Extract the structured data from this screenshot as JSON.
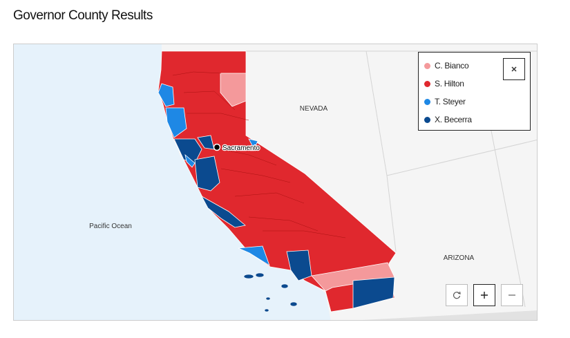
{
  "title": "Governor County Results",
  "map": {
    "labels": {
      "nevada": "NEVADA",
      "arizona": "ARIZONA",
      "ocean": "Pacific Ocean",
      "city": "Sacramento"
    }
  },
  "legend": [
    {
      "name": "C. Bianco",
      "color": "#f4999b"
    },
    {
      "name": "S. Hilton",
      "color": "#e0282e"
    },
    {
      "name": "T. Steyer",
      "color": "#1e88e5"
    },
    {
      "name": "X. Becerra",
      "color": "#0b4a8f"
    }
  ]
}
